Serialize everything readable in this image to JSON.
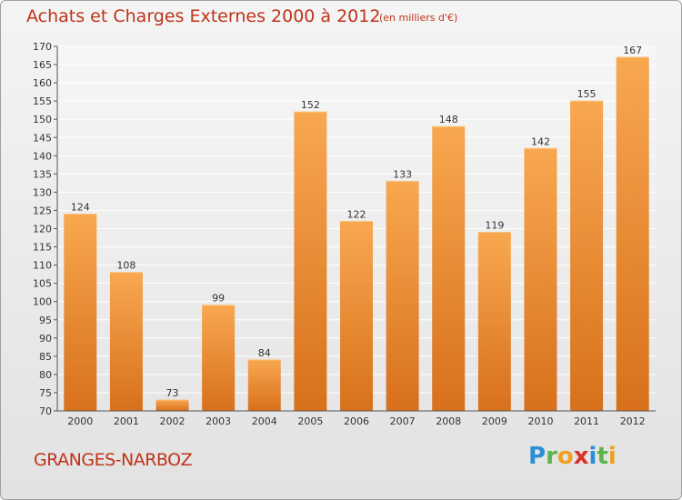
{
  "title": "Achats et Charges Externes 2000 à 2012",
  "subtitle": "(en milliers d'€)",
  "city": "GRANGES-NARBOZ",
  "logo": {
    "p": "P",
    "r": "r",
    "o": "o",
    "x": "x",
    "i1": "i",
    "t": "t",
    "i2": "i"
  },
  "colors": {
    "bar_light": "#f8a850",
    "bar_dark": "#d8701c",
    "text_accent": "#c0331a"
  },
  "chart_data": {
    "type": "bar",
    "categories": [
      "2000",
      "2001",
      "2002",
      "2003",
      "2004",
      "2005",
      "2006",
      "2007",
      "2008",
      "2009",
      "2010",
      "2011",
      "2012"
    ],
    "values": [
      124,
      108,
      73,
      99,
      84,
      152,
      122,
      133,
      148,
      119,
      142,
      155,
      167
    ],
    "ylim": [
      70,
      170
    ],
    "yticks": [
      70,
      75,
      80,
      85,
      90,
      95,
      100,
      105,
      110,
      115,
      120,
      125,
      130,
      135,
      140,
      145,
      150,
      155,
      160,
      165,
      170
    ],
    "grid": true,
    "legend": "none"
  }
}
